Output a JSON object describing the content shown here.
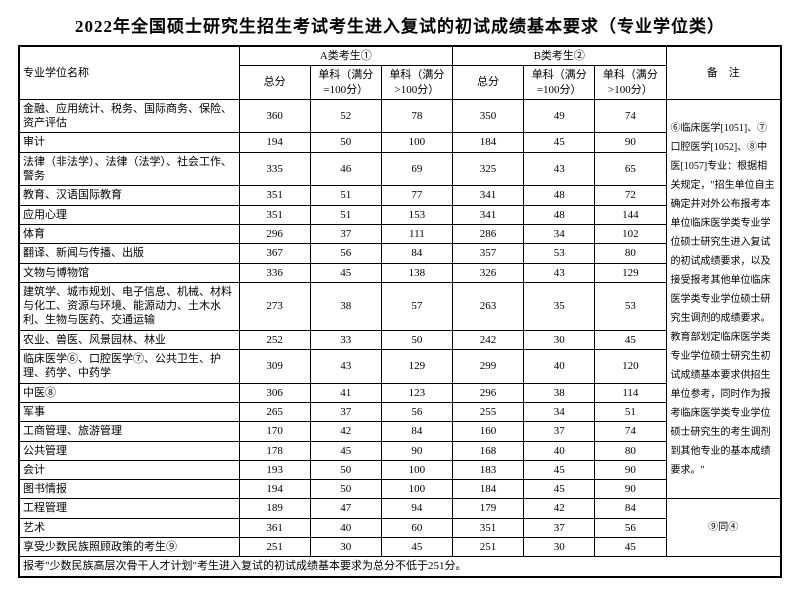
{
  "title": "2022年全国硕士研究生招生考试考生进入复试的初试成绩基本要求（专业学位类）",
  "headers": {
    "name": "专业学位名称",
    "groupA": "A类考生①",
    "groupB": "B类考生②",
    "total": "总分",
    "s100": "单科（满分=100分）",
    "sgt100": "单科（满分>100分）",
    "remark": "备　注"
  },
  "rows": [
    {
      "name": "金融、应用统计、税务、国际商务、保险、资产评估",
      "a": [
        "360",
        "52",
        "78"
      ],
      "b": [
        "350",
        "49",
        "74"
      ]
    },
    {
      "name": "审计",
      "a": [
        "194",
        "50",
        "100"
      ],
      "b": [
        "184",
        "45",
        "90"
      ]
    },
    {
      "name": "法律（非法学）、法律（法学）、社会工作、警务",
      "a": [
        "335",
        "46",
        "69"
      ],
      "b": [
        "325",
        "43",
        "65"
      ]
    },
    {
      "name": "教育、汉语国际教育",
      "a": [
        "351",
        "51",
        "77"
      ],
      "b": [
        "341",
        "48",
        "72"
      ]
    },
    {
      "name": "应用心理",
      "a": [
        "351",
        "51",
        "153"
      ],
      "b": [
        "341",
        "48",
        "144"
      ]
    },
    {
      "name": "体育",
      "a": [
        "296",
        "37",
        "111"
      ],
      "b": [
        "286",
        "34",
        "102"
      ]
    },
    {
      "name": "翻译、新闻与传播、出版",
      "a": [
        "367",
        "56",
        "84"
      ],
      "b": [
        "357",
        "53",
        "80"
      ]
    },
    {
      "name": "文物与博物馆",
      "a": [
        "336",
        "45",
        "138"
      ],
      "b": [
        "326",
        "43",
        "129"
      ]
    },
    {
      "name": "建筑学、城市规划、电子信息、机械、材料与化工、资源与环境、能源动力、土木水利、生物与医药、交通运输",
      "a": [
        "273",
        "38",
        "57"
      ],
      "b": [
        "263",
        "35",
        "53"
      ]
    },
    {
      "name": "农业、兽医、风景园林、林业",
      "a": [
        "252",
        "33",
        "50"
      ],
      "b": [
        "242",
        "30",
        "45"
      ]
    },
    {
      "name": "临床医学⑥、口腔医学⑦、公共卫生、护理、药学、中药学",
      "a": [
        "309",
        "43",
        "129"
      ],
      "b": [
        "299",
        "40",
        "120"
      ]
    },
    {
      "name": "中医⑧",
      "a": [
        "306",
        "41",
        "123"
      ],
      "b": [
        "296",
        "38",
        "114"
      ]
    },
    {
      "name": "军事",
      "a": [
        "265",
        "37",
        "56"
      ],
      "b": [
        "255",
        "34",
        "51"
      ]
    },
    {
      "name": "工商管理、旅游管理",
      "a": [
        "170",
        "42",
        "84"
      ],
      "b": [
        "160",
        "37",
        "74"
      ]
    },
    {
      "name": "公共管理",
      "a": [
        "178",
        "45",
        "90"
      ],
      "b": [
        "168",
        "40",
        "80"
      ]
    },
    {
      "name": "会计",
      "a": [
        "193",
        "50",
        "100"
      ],
      "b": [
        "183",
        "45",
        "90"
      ]
    },
    {
      "name": "图书情报",
      "a": [
        "194",
        "50",
        "100"
      ],
      "b": [
        "184",
        "45",
        "90"
      ]
    },
    {
      "name": "工程管理",
      "a": [
        "189",
        "47",
        "94"
      ],
      "b": [
        "179",
        "42",
        "84"
      ]
    },
    {
      "name": "艺术",
      "a": [
        "361",
        "40",
        "60"
      ],
      "b": [
        "351",
        "37",
        "56"
      ]
    },
    {
      "name": "享受少数民族照顾政策的考生⑨",
      "a": [
        "251",
        "30",
        "45"
      ],
      "b": [
        "251",
        "30",
        "45"
      ]
    }
  ],
  "remark_text": "⑥临床医学[1051]、⑦口腔医学[1052]、⑧中医[1057]专业：根据相关规定，\"招生单位自主确定并对外公布报考本单位临床医学类专业学位硕士研究生进入复试的初试成绩要求，以及接受报考其他单位临床医学类专业学位硕士研究生调剂的成绩要求。教育部划定临床医学类专业学位硕士研究生初试成绩基本要求供招生单位参考，同时作为报考临床医学类专业学位硕士研究生的考生调剂到其他专业的基本成绩要求。\"",
  "remark_tail": "⑨同④",
  "footnote": "报考\"少数民族高层次骨干人才计划\"考生进入复试的初试成绩基本要求为总分不低于251分。"
}
